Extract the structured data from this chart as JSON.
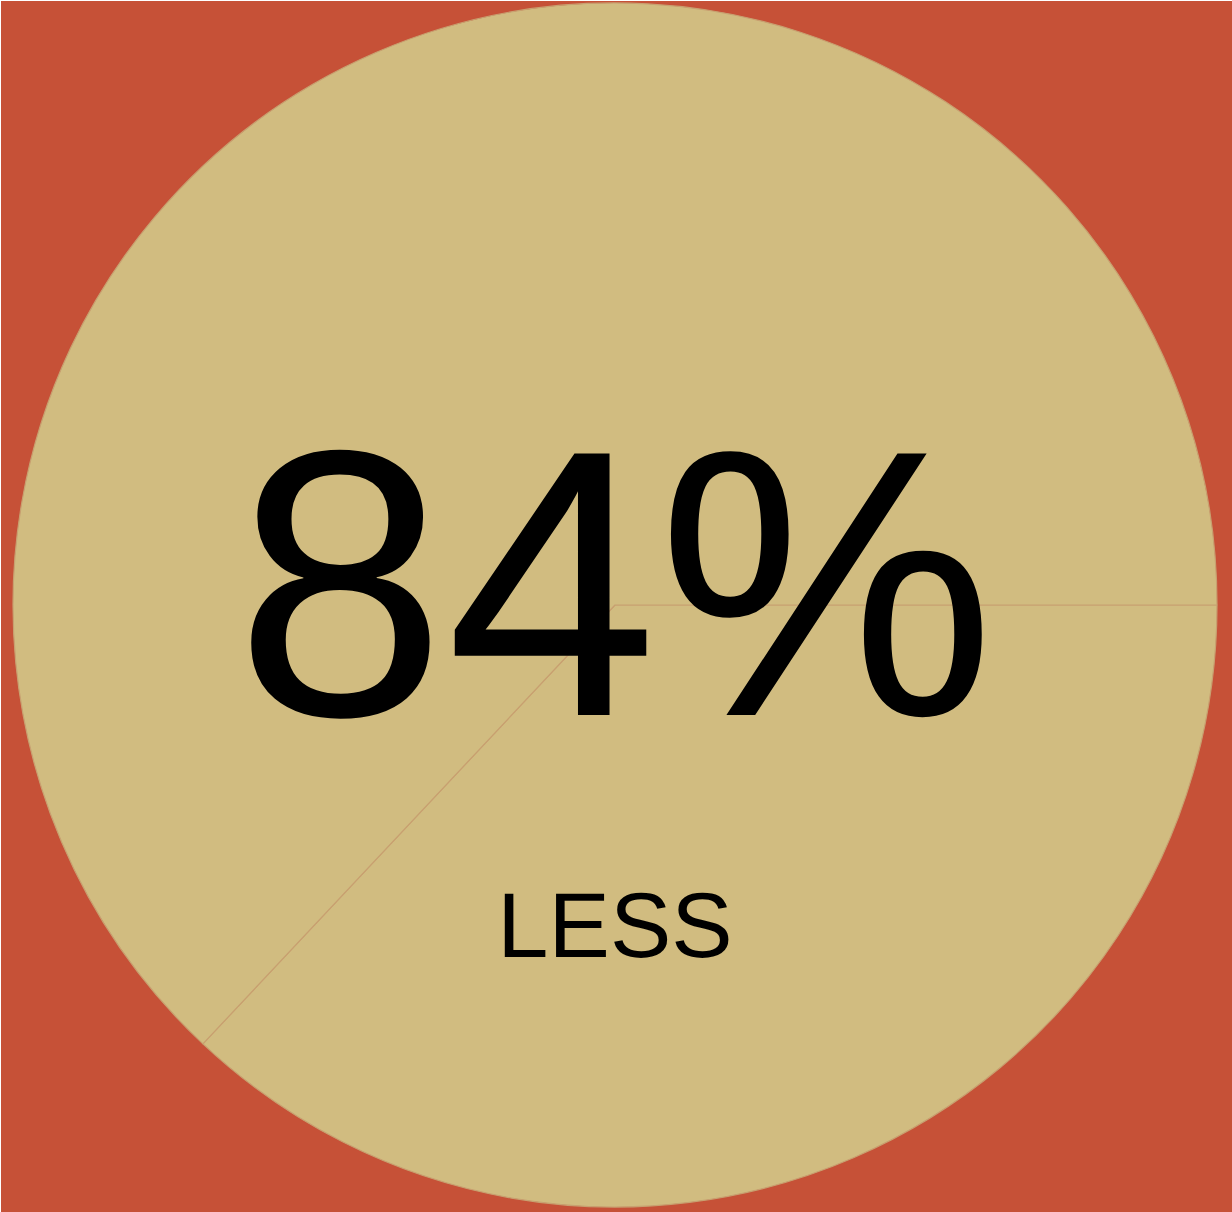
{
  "chart_data": {
    "type": "pie",
    "categories": [
      null,
      null
    ],
    "values": [
      37,
      63
    ],
    "colors": [
      "#d1bc80",
      "#d1bc80"
    ],
    "annotations": [
      "84%",
      "LESS"
    ]
  }
}
